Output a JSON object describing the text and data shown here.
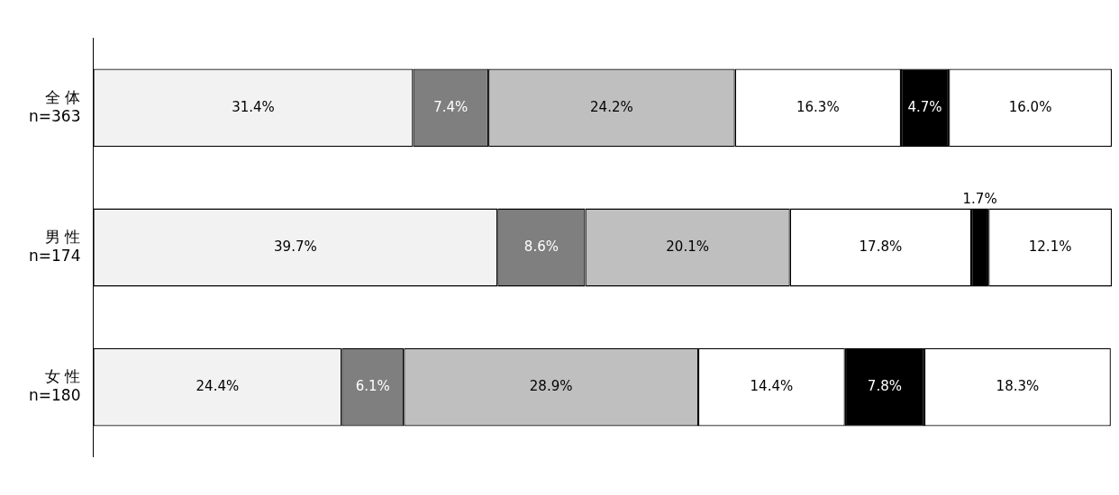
{
  "chart_data": {
    "type": "bar",
    "orientation": "horizontal",
    "stacked": true,
    "legend": false,
    "grid": false,
    "categories": [
      "全 体\nn=363",
      "男 性\nn=174",
      "女 性\nn=180"
    ],
    "series": [
      {
        "color": "#f2f2f2",
        "values": [
          31.4,
          39.7,
          24.4
        ],
        "value_labels": [
          "31.4%",
          "39.7%",
          "24.4%"
        ]
      },
      {
        "color": "#7f7f7f",
        "values": [
          7.4,
          8.6,
          6.1
        ],
        "value_labels": [
          "7.4%",
          "8.6%",
          "6.1%"
        ]
      },
      {
        "color": "#bfbfbf",
        "values": [
          24.2,
          20.1,
          28.9
        ],
        "value_labels": [
          "24.2%",
          "20.1%",
          "28.9%"
        ]
      },
      {
        "color": "#ffffff",
        "values": [
          16.3,
          17.8,
          14.4
        ],
        "value_labels": [
          "16.3%",
          "17.8%",
          "14.4%"
        ]
      },
      {
        "color": "#000000",
        "values": [
          4.7,
          1.7,
          7.8
        ],
        "value_labels": [
          "4.7%",
          "1.7%",
          "7.8%"
        ]
      },
      {
        "color": "#ffffff",
        "values": [
          16.0,
          12.1,
          18.3
        ],
        "value_labels": [
          "16.0%",
          "12.1%",
          "18.3%"
        ]
      }
    ]
  }
}
